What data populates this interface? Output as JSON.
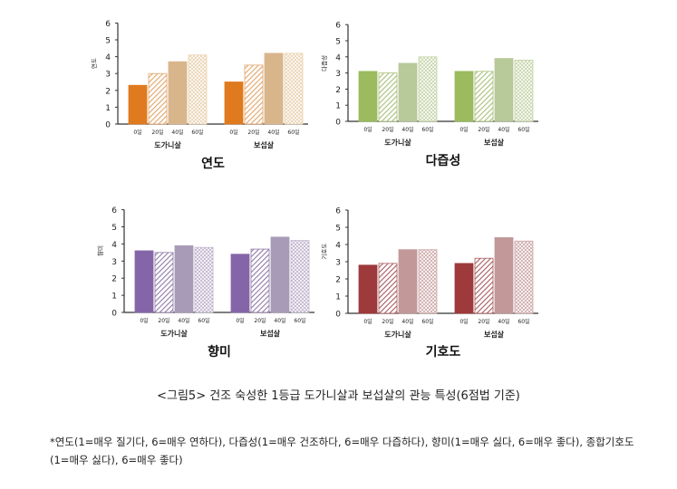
{
  "caption": "<그림5> 건조 숙성한 1등급 도가니살과 보섭살의 관능 특성(6점법 기준)",
  "footnote": "*연도(1=매우 질기다, 6=매우 연하다), 다즙성(1=매우 건조하다, 6=매우 다즙하다), 향미(1=매우 싫다, 6=매우 좋다), 종합기호도(1=매우 싫다), 6=매우 좋다)",
  "chart_data": [
    {
      "type": "bar",
      "title": "연도",
      "ylabel": "연도",
      "ylim": [
        0,
        6
      ],
      "yticks": [
        "0",
        "1",
        "2",
        "3",
        "4",
        "5",
        "6"
      ],
      "groups": [
        "도가니살",
        "보섭살"
      ],
      "categories": [
        "0일",
        "20일",
        "40일",
        "60일"
      ],
      "series": [
        {
          "values": [
            2.3,
            3.0,
            3.7,
            4.1
          ]
        },
        {
          "values": [
            2.5,
            3.5,
            4.2,
            4.2
          ]
        }
      ],
      "colors": [
        "#e07a1f",
        "#e2a468",
        "#d9b58c",
        "#ead2b0"
      ]
    },
    {
      "type": "bar",
      "title": "다즙성",
      "ylabel": "다즙성",
      "ylim": [
        0,
        6
      ],
      "yticks": [
        "0",
        "1",
        "2",
        "3",
        "4",
        "5",
        "6"
      ],
      "groups": [
        "도가니살",
        "보섭살"
      ],
      "categories": [
        "0일",
        "20일",
        "40일",
        "60일"
      ],
      "series": [
        {
          "values": [
            3.1,
            3.0,
            3.6,
            4.0
          ]
        },
        {
          "values": [
            3.1,
            3.1,
            3.9,
            3.8
          ]
        }
      ],
      "colors": [
        "#9bbb5e",
        "#a8bf78",
        "#b8c99a",
        "#c6d4a8"
      ]
    },
    {
      "type": "bar",
      "title": "향미",
      "ylabel": "향미",
      "ylim": [
        0,
        6
      ],
      "yticks": [
        "0",
        "1",
        "2",
        "3",
        "4",
        "5",
        "6"
      ],
      "groups": [
        "도가니살",
        "보섭살"
      ],
      "categories": [
        "0일",
        "20일",
        "40일",
        "60일"
      ],
      "series": [
        {
          "values": [
            3.6,
            3.5,
            3.9,
            3.8
          ]
        },
        {
          "values": [
            3.4,
            3.7,
            4.4,
            4.2
          ]
        }
      ],
      "colors": [
        "#8466a8",
        "#8f7aa8",
        "#a89bb8",
        "#bfb2cc"
      ]
    },
    {
      "type": "bar",
      "title": "기호도",
      "ylabel": "기호도",
      "ylim": [
        0,
        6
      ],
      "yticks": [
        "0",
        "1",
        "2",
        "3",
        "4",
        "5",
        "6"
      ],
      "groups": [
        "도가니살",
        "보섭살"
      ],
      "categories": [
        "0일",
        "20일",
        "40일",
        "60일"
      ],
      "series": [
        {
          "values": [
            2.8,
            2.9,
            3.7,
            3.7
          ]
        },
        {
          "values": [
            2.9,
            3.2,
            4.4,
            4.2
          ]
        }
      ],
      "colors": [
        "#9e3a3c",
        "#a85a5e",
        "#c29898",
        "#cfa8a8"
      ]
    }
  ]
}
